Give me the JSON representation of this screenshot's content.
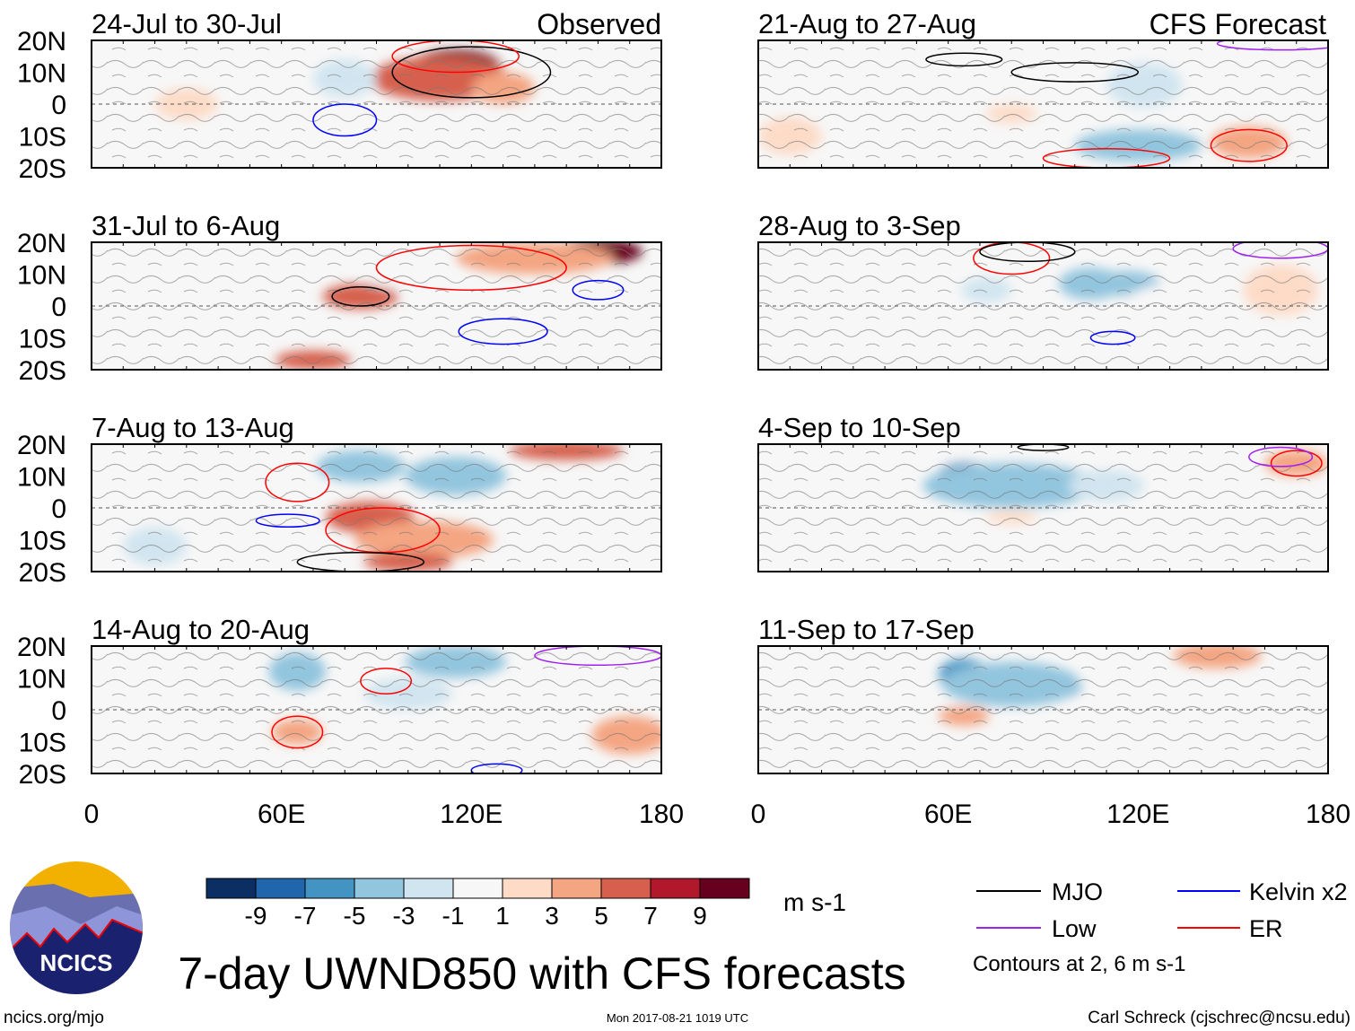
{
  "title": "7-day UWND850 with CFS forecasts",
  "left_header": "Observed",
  "right_header": "CFS Forecast",
  "lat_labels": [
    "20N",
    "10N",
    "0",
    "10S",
    "20S"
  ],
  "lon_labels": [
    "0",
    "60E",
    "120E",
    "180"
  ],
  "units": "m s-1",
  "colorbar": {
    "labels": [
      "-9",
      "-7",
      "-5",
      "-3",
      "-1",
      "1",
      "3",
      "5",
      "7",
      "9"
    ],
    "colors": [
      "#0c2f63",
      "#2166ac",
      "#4393c3",
      "#92c5de",
      "#d1e5f0",
      "#f7f7f7",
      "#fddbc7",
      "#f4a582",
      "#d6604d",
      "#b2182b",
      "#67001f"
    ]
  },
  "legend": {
    "items": [
      {
        "label": "MJO",
        "color": "#000000"
      },
      {
        "label": "Kelvin x2",
        "color": "#0000ff"
      },
      {
        "label": "Low",
        "color": "#a020f0"
      },
      {
        "label": "ER",
        "color": "#ff0000"
      }
    ],
    "note": "Contours at 2, 6 m s-1"
  },
  "footer": {
    "site": "ncics.org/mjo",
    "timestamp": "Mon 2017-08-21 1019 UTC",
    "author": "Carl Schreck (cjschrec@ncsu.edu)"
  },
  "logo_text": "NCICS",
  "chart_data": {
    "type": "heatmap",
    "variable": "850-hPa zonal wind anomaly",
    "xlim": [
      0,
      180
    ],
    "ylim": [
      -20,
      20
    ],
    "panels": [
      {
        "title": "24-Jul to 30-Jul",
        "column": "observed",
        "blobs": [
          [
            115,
            12,
            14,
            5,
            9
          ],
          [
            110,
            8,
            22,
            7,
            5
          ],
          [
            130,
            5,
            10,
            5,
            3
          ],
          [
            80,
            8,
            10,
            6,
            -3
          ],
          [
            30,
            0,
            10,
            5,
            1
          ],
          [
            95,
            -10,
            20,
            5,
            -1
          ]
        ],
        "contours": [
          [
            "MJO",
            120,
            10,
            25,
            8
          ],
          [
            "Kelvin",
            80,
            -5,
            10,
            5
          ],
          [
            "ER",
            115,
            15,
            20,
            5
          ]
        ]
      },
      {
        "title": "31-Jul to 6-Aug",
        "column": "observed",
        "blobs": [
          [
            85,
            3,
            12,
            4,
            5
          ],
          [
            160,
            17,
            14,
            4,
            9
          ],
          [
            140,
            15,
            25,
            5,
            3
          ],
          [
            70,
            -17,
            12,
            3,
            5
          ],
          [
            100,
            10,
            15,
            5,
            -1
          ]
        ],
        "contours": [
          [
            "MJO",
            85,
            3,
            9,
            3
          ],
          [
            "ER",
            120,
            12,
            30,
            7
          ],
          [
            "Kelvin",
            160,
            5,
            8,
            3
          ],
          [
            "Kelvin",
            130,
            -8,
            14,
            4
          ]
        ]
      },
      {
        "title": "7-Aug to 13-Aug",
        "column": "observed",
        "blobs": [
          [
            85,
            13,
            14,
            5,
            -5
          ],
          [
            115,
            10,
            16,
            6,
            -5
          ],
          [
            88,
            -3,
            14,
            5,
            5
          ],
          [
            105,
            -10,
            22,
            6,
            3
          ],
          [
            100,
            -17,
            14,
            3,
            5
          ],
          [
            150,
            18,
            18,
            3,
            5
          ],
          [
            20,
            -12,
            10,
            6,
            -3
          ]
        ],
        "contours": [
          [
            "ER",
            65,
            8,
            10,
            6
          ],
          [
            "ER",
            92,
            -7,
            18,
            7
          ],
          [
            "Kelvin",
            62,
            -4,
            10,
            2
          ],
          [
            "MJO",
            85,
            -17,
            20,
            3
          ]
        ]
      },
      {
        "title": "14-Aug to 20-Aug",
        "column": "observed",
        "blobs": [
          [
            65,
            12,
            9,
            6,
            -5
          ],
          [
            115,
            15,
            16,
            5,
            -5
          ],
          [
            65,
            -7,
            8,
            4,
            3
          ],
          [
            170,
            -8,
            12,
            6,
            3
          ],
          [
            100,
            5,
            14,
            5,
            -3
          ]
        ],
        "contours": [
          [
            "ER",
            65,
            -7,
            8,
            5
          ],
          [
            "ER",
            93,
            9,
            8,
            4
          ],
          [
            "Low",
            160,
            17,
            20,
            3
          ],
          [
            "Kelvin",
            128,
            -19,
            8,
            2
          ]
        ]
      },
      {
        "title": "21-Aug to 27-Aug",
        "column": "forecast",
        "blobs": [
          [
            122,
            6,
            12,
            7,
            -3
          ],
          [
            120,
            -13,
            20,
            5,
            -5
          ],
          [
            155,
            -12,
            12,
            5,
            3
          ],
          [
            10,
            -10,
            10,
            6,
            1
          ],
          [
            80,
            -3,
            8,
            3,
            1
          ]
        ],
        "contours": [
          [
            "MJO",
            65,
            14,
            12,
            2
          ],
          [
            "MJO",
            100,
            10,
            20,
            3
          ],
          [
            "ER",
            155,
            -13,
            12,
            5
          ],
          [
            "ER",
            110,
            -17,
            20,
            3
          ],
          [
            "Low",
            165,
            19,
            20,
            2
          ]
        ]
      },
      {
        "title": "28-Aug to 3-Sep",
        "column": "forecast",
        "blobs": [
          [
            105,
            7,
            10,
            5,
            -5
          ],
          [
            117,
            7,
            10,
            4,
            -5
          ],
          [
            72,
            5,
            8,
            4,
            -3
          ],
          [
            140,
            0,
            25,
            8,
            -1
          ],
          [
            165,
            5,
            12,
            8,
            1
          ]
        ],
        "contours": [
          [
            "ER",
            80,
            15,
            12,
            5
          ],
          [
            "MJO",
            85,
            17,
            15,
            3
          ],
          [
            "Kelvin",
            112,
            -10,
            7,
            2
          ],
          [
            "Low",
            165,
            18,
            15,
            3
          ]
        ]
      },
      {
        "title": "4-Sep to 10-Sep",
        "column": "forecast",
        "blobs": [
          [
            66,
            9,
            10,
            5,
            -9
          ],
          [
            85,
            6,
            12,
            4,
            -7
          ],
          [
            80,
            7,
            28,
            7,
            -5
          ],
          [
            170,
            14,
            10,
            4,
            3
          ],
          [
            110,
            7,
            12,
            5,
            -3
          ],
          [
            80,
            -3,
            8,
            2,
            1
          ]
        ],
        "contours": [
          [
            "ER",
            170,
            14,
            8,
            4
          ],
          [
            "Low",
            165,
            16,
            10,
            3
          ],
          [
            "MJO",
            90,
            19,
            8,
            1
          ]
        ]
      },
      {
        "title": "11-Sep to 17-Sep",
        "column": "forecast",
        "blobs": [
          [
            65,
            11,
            8,
            5,
            -7
          ],
          [
            90,
            7,
            12,
            4,
            -9
          ],
          [
            80,
            8,
            22,
            7,
            -5
          ],
          [
            145,
            17,
            14,
            4,
            3
          ],
          [
            65,
            -2,
            8,
            3,
            3
          ],
          [
            120,
            -5,
            25,
            8,
            -1
          ]
        ],
        "contours": []
      }
    ]
  }
}
